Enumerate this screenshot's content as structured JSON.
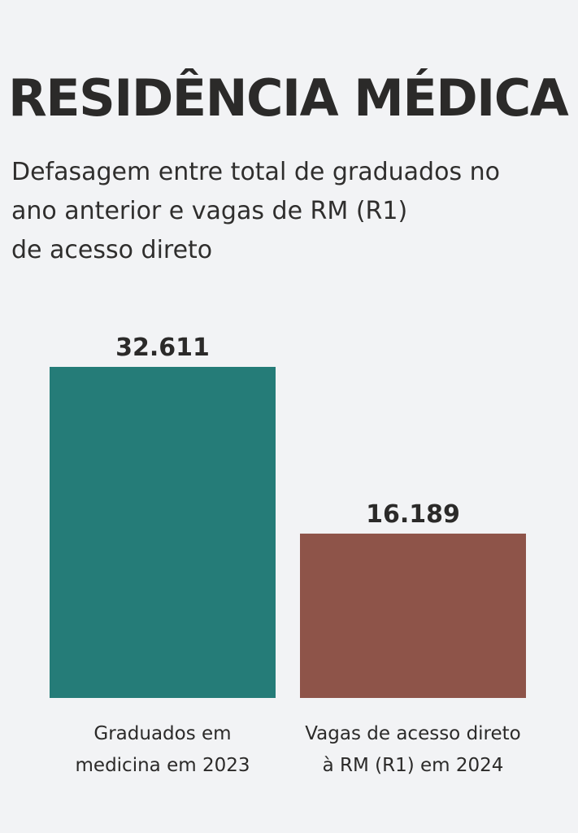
{
  "header": {
    "title": "RESIDÊNCIA MÉDICA",
    "subtitle_lines": [
      "Defasagem entre total de graduados no",
      "ano anterior e vagas de RM (R1)",
      "de acesso direto"
    ]
  },
  "chart_data": {
    "type": "bar",
    "title": "RESIDÊNCIA MÉDICA",
    "subtitle": "Defasagem entre total de graduados no ano anterior e vagas de RM (R1) de acesso direto",
    "categories": [
      [
        "Graduados em",
        "medicina em 2023"
      ],
      [
        "Vagas de acesso direto",
        "à RM (R1) em 2024"
      ]
    ],
    "values": [
      32611,
      16189
    ],
    "value_labels": [
      "32.611",
      "16.189"
    ],
    "colors": [
      "#257c78",
      "#8e5449"
    ],
    "xlabel": "",
    "ylabel": "",
    "grid": false,
    "legend": "none"
  }
}
